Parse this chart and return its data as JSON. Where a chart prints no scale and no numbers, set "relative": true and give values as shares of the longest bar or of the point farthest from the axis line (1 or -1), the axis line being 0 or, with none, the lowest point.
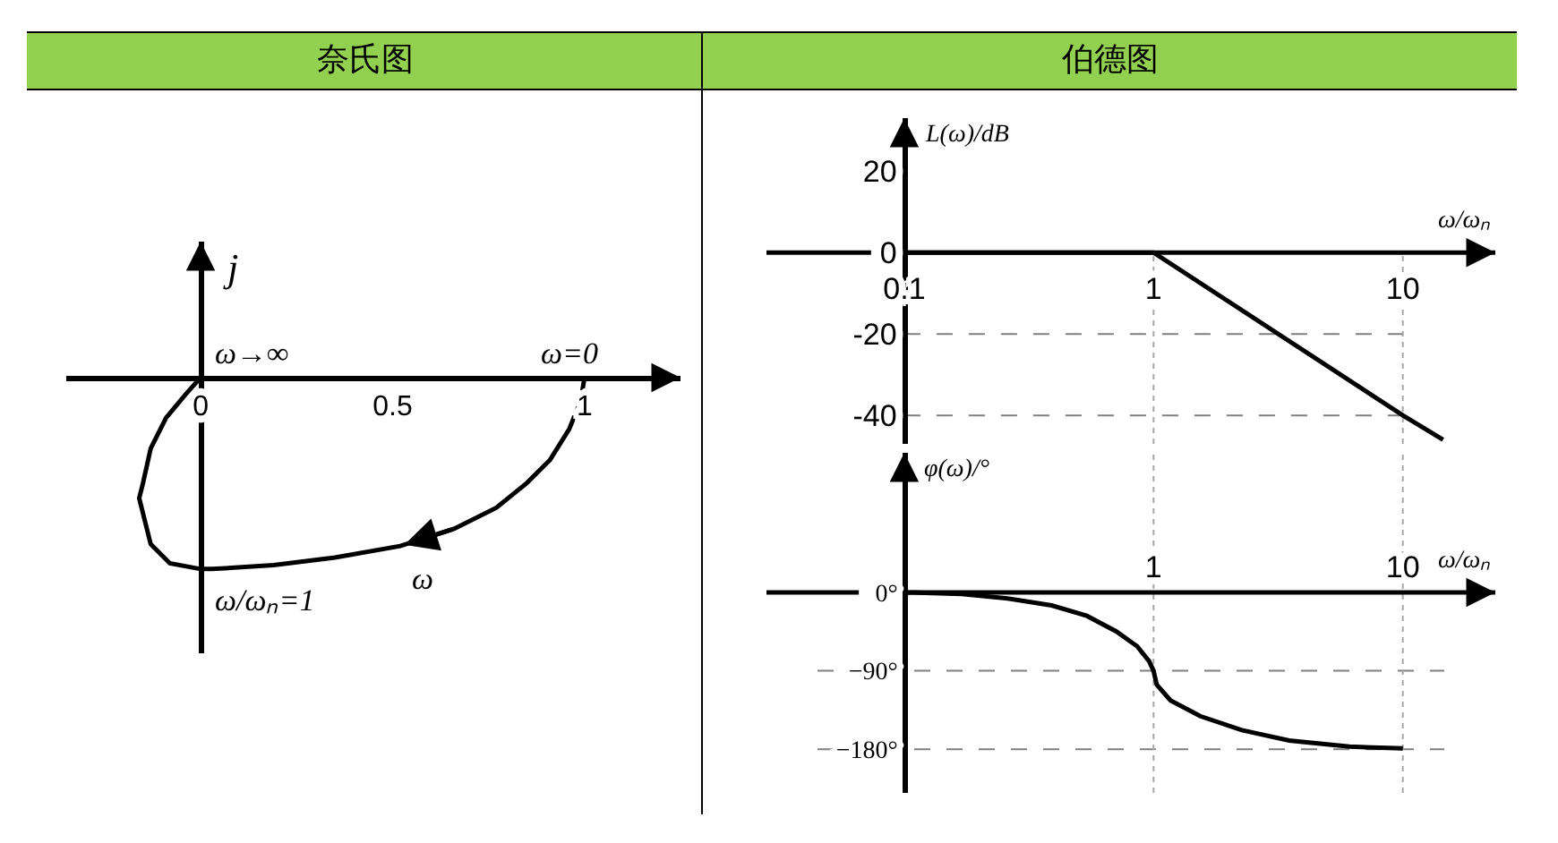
{
  "chart_data": [
    {
      "type": "line",
      "title": "奈氏图",
      "ylabel": "j",
      "relative": true,
      "x": [
        1,
        0.99,
        0.96,
        0.91,
        0.85,
        0.77,
        0.66,
        0.52,
        0.35,
        0.19,
        0.03,
        0,
        -0.08,
        -0.13,
        -0.15,
        -0.16,
        -0.15,
        -0.13,
        -0.09,
        -0.04,
        0
      ],
      "series": [
        {
          "color": "#000000",
          "values": [
            0,
            -0.12,
            -0.27,
            -0.43,
            -0.55,
            -0.68,
            -0.79,
            -0.88,
            -0.94,
            -0.98,
            -1.0,
            -1.0,
            -0.97,
            -0.87,
            -0.71,
            -0.63,
            -0.55,
            -0.37,
            -0.21,
            -0.09,
            0
          ]
        }
      ],
      "xlim": [
        -0.35,
        1.25
      ],
      "xticks": [
        0,
        0.5,
        1
      ],
      "annotations": [
        {
          "text": "ω→∞",
          "x": 0,
          "y": 0
        },
        {
          "text": "ω=0",
          "x": 1,
          "y": 0
        },
        {
          "text": "ω",
          "x": 0.53,
          "y": -0.87
        },
        {
          "text": "ω/ωₙ=1",
          "x": 0,
          "y": -1.0
        }
      ]
    },
    {
      "type": "line",
      "title": "伯德图",
      "xlabel": "ω/ωₙ",
      "ylabel": "L(ω)/dB",
      "log": "x",
      "x": [
        0.1,
        1,
        10,
        14.5
      ],
      "series": [
        {
          "color": "#000000",
          "values": [
            0,
            0,
            -40,
            -46
          ]
        }
      ],
      "xlim": [
        0.028,
        23.5
      ],
      "xticks": [
        0.1,
        1,
        10
      ],
      "ylim": [
        -47,
        33
      ],
      "yticks": [
        20,
        0,
        -20,
        -40
      ],
      "ref_lines": [
        {
          "axis": "y",
          "value": -20,
          "color": "#7f7f7f",
          "line_style": "dashed"
        },
        {
          "axis": "y",
          "value": -40,
          "color": "#7f7f7f",
          "line_style": "dashed"
        },
        {
          "axis": "x",
          "value": 1,
          "color": "#a6a6a6",
          "line_style": "dotted"
        },
        {
          "axis": "x",
          "value": 10,
          "color": "#a6a6a6",
          "line_style": "dotted"
        }
      ]
    },
    {
      "type": "line",
      "xlabel": "ω/ωₙ",
      "ylabel": "φ(ω)/°",
      "log": "x",
      "x": [
        0.1,
        0.17,
        0.26,
        0.39,
        0.54,
        0.71,
        0.86,
        0.96,
        1,
        1.03,
        1.17,
        1.54,
        2.26,
        3.5,
        6.1,
        10
      ],
      "series": [
        {
          "color": "#000000",
          "values": [
            0,
            -2,
            -7,
            -15,
            -27,
            -45,
            -62,
            -79,
            -90,
            -106,
            -124,
            -142,
            -158,
            -170,
            -177,
            -179
          ]
        }
      ],
      "xlim": [
        0.028,
        23.5
      ],
      "xticks": [
        1,
        10
      ],
      "ylim": [
        -230,
        160
      ],
      "yticks": [
        {
          "value": 0,
          "label": "0°"
        },
        {
          "value": -90,
          "label": "−90°"
        },
        {
          "value": -180,
          "label": "−180°"
        }
      ],
      "ref_lines": [
        {
          "axis": "y",
          "value": -90,
          "color": "#7f7f7f",
          "line_style": "dashed"
        },
        {
          "axis": "y",
          "value": -180,
          "color": "#7f7f7f",
          "line_style": "dashed"
        },
        {
          "axis": "x",
          "value": 1,
          "color": "#a6a6a6",
          "line_style": "dotted"
        },
        {
          "axis": "x",
          "value": 10,
          "color": "#a6a6a6",
          "line_style": "dotted"
        }
      ]
    }
  ]
}
